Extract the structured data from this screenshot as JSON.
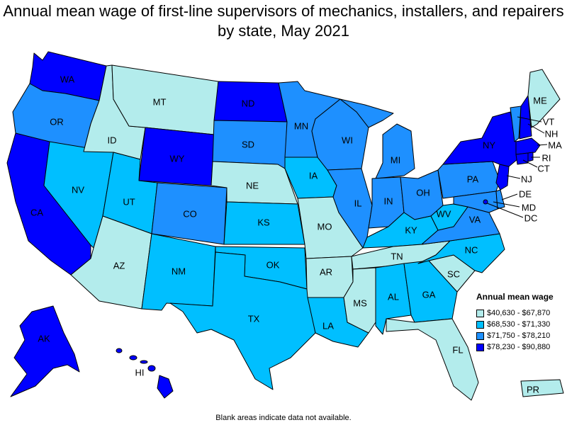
{
  "title": "Annual mean wage of first-line supervisors of mechanics, installers, and repairers by state, May 2021",
  "footnote": "Blank areas indicate data not available.",
  "legend": {
    "title": "Annual mean wage",
    "bins": [
      {
        "range": "$40,630 - $67,870",
        "color": "#b3ecec"
      },
      {
        "range": "$68,530 - $71,330",
        "color": "#00bfff"
      },
      {
        "range": "$71,750 - $78,210",
        "color": "#1e90ff"
      },
      {
        "range": "$78,230 - $90,880",
        "color": "#0000ff"
      }
    ]
  },
  "states": [
    {
      "abbr": "WA",
      "bin": 3
    },
    {
      "abbr": "OR",
      "bin": 2
    },
    {
      "abbr": "CA",
      "bin": 3
    },
    {
      "abbr": "NV",
      "bin": 1
    },
    {
      "abbr": "ID",
      "bin": 0
    },
    {
      "abbr": "MT",
      "bin": 0
    },
    {
      "abbr": "WY",
      "bin": 3
    },
    {
      "abbr": "UT",
      "bin": 1
    },
    {
      "abbr": "AZ",
      "bin": 0
    },
    {
      "abbr": "CO",
      "bin": 2
    },
    {
      "abbr": "NM",
      "bin": 1
    },
    {
      "abbr": "ND",
      "bin": 3
    },
    {
      "abbr": "SD",
      "bin": 2
    },
    {
      "abbr": "NE",
      "bin": 0
    },
    {
      "abbr": "KS",
      "bin": 1
    },
    {
      "abbr": "OK",
      "bin": 1
    },
    {
      "abbr": "TX",
      "bin": 1
    },
    {
      "abbr": "MN",
      "bin": 2
    },
    {
      "abbr": "IA",
      "bin": 1
    },
    {
      "abbr": "MO",
      "bin": 0
    },
    {
      "abbr": "AR",
      "bin": 0
    },
    {
      "abbr": "LA",
      "bin": 1
    },
    {
      "abbr": "WI",
      "bin": 2
    },
    {
      "abbr": "IL",
      "bin": 2
    },
    {
      "abbr": "MI",
      "bin": 2
    },
    {
      "abbr": "IN",
      "bin": 2
    },
    {
      "abbr": "OH",
      "bin": 2
    },
    {
      "abbr": "KY",
      "bin": 1
    },
    {
      "abbr": "TN",
      "bin": 0
    },
    {
      "abbr": "MS",
      "bin": 0
    },
    {
      "abbr": "AL",
      "bin": 1
    },
    {
      "abbr": "GA",
      "bin": 1
    },
    {
      "abbr": "FL",
      "bin": 0
    },
    {
      "abbr": "SC",
      "bin": 0
    },
    {
      "abbr": "NC",
      "bin": 1
    },
    {
      "abbr": "VA",
      "bin": 2
    },
    {
      "abbr": "WV",
      "bin": 1
    },
    {
      "abbr": "PA",
      "bin": 2
    },
    {
      "abbr": "NY",
      "bin": 3
    },
    {
      "abbr": "VT",
      "bin": 2
    },
    {
      "abbr": "NH",
      "bin": 3
    },
    {
      "abbr": "ME",
      "bin": 0
    },
    {
      "abbr": "MA",
      "bin": 3
    },
    {
      "abbr": "RI",
      "bin": 3
    },
    {
      "abbr": "CT",
      "bin": 3
    },
    {
      "abbr": "NJ",
      "bin": 3
    },
    {
      "abbr": "DE",
      "bin": 2
    },
    {
      "abbr": "MD",
      "bin": 2
    },
    {
      "abbr": "DC",
      "bin": 3
    },
    {
      "abbr": "AK",
      "bin": 3
    },
    {
      "abbr": "HI",
      "bin": 3
    },
    {
      "abbr": "PR",
      "bin": 0
    }
  ]
}
